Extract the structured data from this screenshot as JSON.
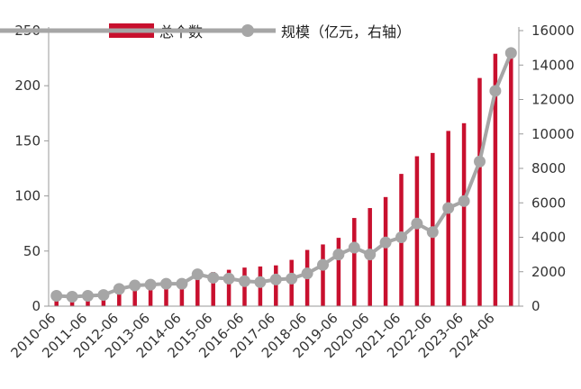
{
  "chart_data": {
    "type": "bar+line",
    "categories": [
      "2010-06",
      "2010-12",
      "2011-06",
      "2011-12",
      "2012-06",
      "2012-12",
      "2013-06",
      "2013-12",
      "2014-06",
      "2014-12",
      "2015-06",
      "2015-12",
      "2016-06",
      "2016-12",
      "2017-06",
      "2017-12",
      "2018-06",
      "2018-12",
      "2019-06",
      "2019-12",
      "2020-06",
      "2020-12",
      "2021-06",
      "2021-12",
      "2022-06",
      "2022-12",
      "2023-06",
      "2023-12",
      "2024-06",
      "2024-12"
    ],
    "x_tick_labels": [
      "2010-06",
      "2011-06",
      "2012-06",
      "2013-06",
      "2014-06",
      "2015-06",
      "2016-06",
      "2017-06",
      "2018-06",
      "2019-06",
      "2020-06",
      "2021-06",
      "2022-06",
      "2023-06",
      "2024-06"
    ],
    "series": [
      {
        "name": "总个数",
        "type": "bar",
        "axis": "left",
        "color": "#c8102e",
        "values": [
          8,
          9,
          10,
          12,
          17,
          21,
          22,
          23,
          25,
          27,
          31,
          33,
          35,
          36,
          37,
          42,
          51,
          56,
          62,
          80,
          89,
          99,
          120,
          136,
          139,
          159,
          166,
          207,
          229,
          230
        ]
      },
      {
        "name": "规模（亿元，右轴）",
        "type": "line",
        "axis": "right",
        "color": "#a6a6a6",
        "values": [
          600,
          550,
          600,
          650,
          1000,
          1200,
          1250,
          1300,
          1300,
          1850,
          1650,
          1600,
          1450,
          1400,
          1550,
          1600,
          1900,
          2400,
          3000,
          3400,
          3000,
          3700,
          4000,
          4800,
          4300,
          5700,
          6100,
          8400,
          12500,
          14700
        ]
      }
    ],
    "y_left": {
      "min": 0,
      "max": 250,
      "ticks": [
        0,
        50,
        100,
        150,
        200,
        250
      ]
    },
    "y_right": {
      "min": 0,
      "max": 16000,
      "ticks": [
        0,
        2000,
        4000,
        6000,
        8000,
        10000,
        12000,
        14000,
        16000
      ]
    },
    "legend": {
      "position": "top"
    }
  }
}
